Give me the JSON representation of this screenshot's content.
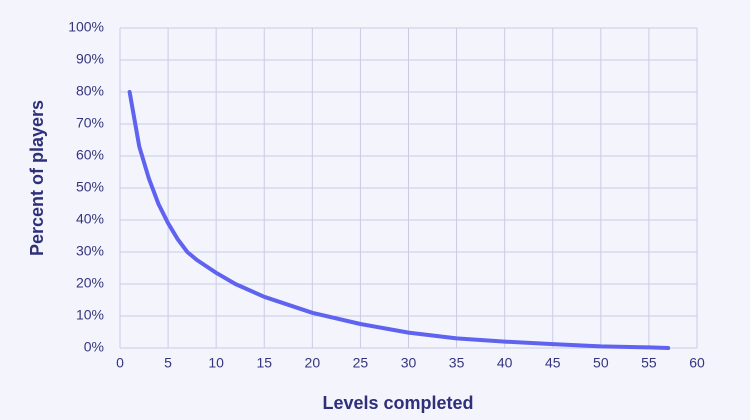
{
  "chart_data": {
    "type": "line",
    "xlabel": "Levels completed",
    "ylabel": "Percent of players",
    "x": [
      1,
      2,
      3,
      4,
      5,
      6,
      7,
      8,
      10,
      12,
      15,
      20,
      25,
      30,
      35,
      40,
      45,
      50,
      55,
      57
    ],
    "series": [
      {
        "name": "Percent of players",
        "color": "#5f63ef",
        "values": [
          80,
          63,
          53,
          45,
          39,
          34,
          30,
          27.5,
          23.5,
          20,
          16,
          11,
          7.5,
          4.8,
          3,
          2,
          1.2,
          0.5,
          0.2,
          0
        ]
      }
    ],
    "xlim": [
      0,
      60
    ],
    "xticks": [
      0,
      5,
      10,
      15,
      20,
      25,
      30,
      35,
      40,
      45,
      50,
      55,
      60
    ],
    "ylim": [
      0,
      100
    ],
    "yticks": [
      {
        "value": 0,
        "label": "0%"
      },
      {
        "value": 10,
        "label": "10%"
      },
      {
        "value": 20,
        "label": "20%"
      },
      {
        "value": 30,
        "label": "30%"
      },
      {
        "value": 40,
        "label": "40%"
      },
      {
        "value": 50,
        "label": "50%"
      },
      {
        "value": 60,
        "label": "60%"
      },
      {
        "value": 70,
        "label": "70%"
      },
      {
        "value": 80,
        "label": "80%"
      },
      {
        "value": 90,
        "label": "90%"
      },
      {
        "value": 100,
        "label": "100%"
      }
    ],
    "grid": true
  }
}
